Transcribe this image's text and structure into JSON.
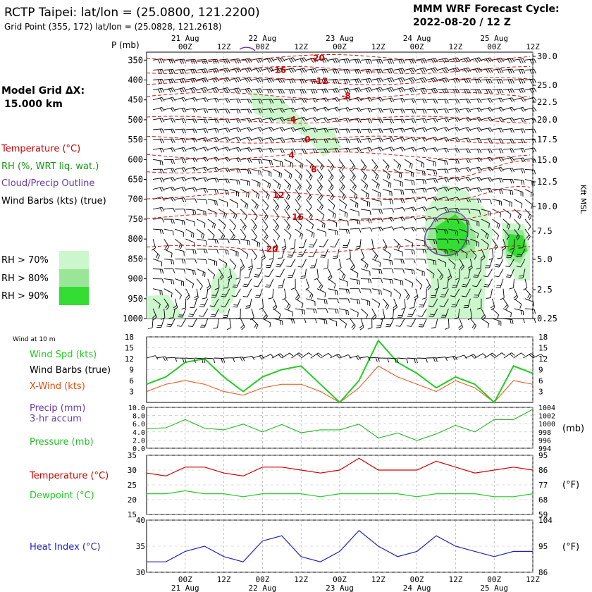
{
  "header": {
    "title": "RCTP Taipei:  lat/lon = (25.0800, 121.2200)",
    "grid_point": "Grid Point (355, 172) lat/lon = (25.0828, 121.2618)",
    "cycle_label": "MMM WRF Forecast Cycle:",
    "cycle_value": "2022-08-20 / 12  Z"
  },
  "sidebar": {
    "model_grid_label": "Model Grid ΔX:",
    "model_grid_value": "15.000 km",
    "legend_temperature": "Temperature (°C)",
    "legend_rh": "RH (%, WRT liq. wat.)",
    "legend_cloud": "Cloud/Precip Outline",
    "legend_barbs": "Wind Barbs (kts) (true)",
    "rh_70": "RH > 70%",
    "rh_80": "RH > 80%",
    "rh_90": "RH > 90%"
  },
  "colors": {
    "temperature": "#d00000",
    "rh_70": "#ccf7cc",
    "rh_80": "#99e699",
    "rh_90": "#33dd33",
    "cloud": "#6a3aa8",
    "wind_spd": "#22cc22",
    "x_wind": "#e05010",
    "pressure": "#22bb22",
    "dewpoint": "#22cc22",
    "heat_index": "#2222bb"
  },
  "chart_data": [
    {
      "type": "heatmap",
      "panel": "upper-air cross-section",
      "ylabel": "P (mb)",
      "y2label": "Kft MSL",
      "x_top_dates": [
        {
          "label": "21 Aug",
          "hour": 12
        },
        {
          "label": "22 Aug",
          "hour": 36
        },
        {
          "label": "23 Aug",
          "hour": 60
        },
        {
          "label": "24 Aug",
          "hour": 84
        },
        {
          "label": "25 Aug",
          "hour": 108
        }
      ],
      "x_hour_ticks": [
        {
          "label": "00Z",
          "hour": 12
        },
        {
          "label": "12Z",
          "hour": 24
        },
        {
          "label": "00Z",
          "hour": 36
        },
        {
          "label": "12Z",
          "hour": 48
        },
        {
          "label": "00Z",
          "hour": 60
        },
        {
          "label": "12Z",
          "hour": 72
        },
        {
          "label": "00Z",
          "hour": 84
        },
        {
          "label": "12Z",
          "hour": 96
        },
        {
          "label": "00Z",
          "hour": 108
        },
        {
          "label": "12Z",
          "hour": 120
        }
      ],
      "pressure_levels": [
        "350",
        "400",
        "450",
        "500",
        "550",
        "600",
        "650",
        "700",
        "750",
        "800",
        "850",
        "900",
        "950",
        "1000"
      ],
      "height_labels": [
        "30.0",
        "25.0",
        "22.5",
        "20.0",
        "17.5",
        "15.0",
        "12.5",
        "10.0",
        "7.5",
        "5.0",
        "2.5",
        "0.25"
      ],
      "temperature_labels": [
        {
          "text": "-20",
          "hour": 53,
          "p": 345
        },
        {
          "text": "-16",
          "hour": 41,
          "p": 375
        },
        {
          "text": "-12",
          "hour": 54,
          "p": 403
        },
        {
          "text": "-8",
          "hour": 62,
          "p": 440
        },
        {
          "text": "-4",
          "hour": 45,
          "p": 500
        },
        {
          "text": "0",
          "hour": 50,
          "p": 550
        },
        {
          "text": "4",
          "hour": 45,
          "p": 590
        },
        {
          "text": "8",
          "hour": 52,
          "p": 625
        },
        {
          "text": "12",
          "hour": 41,
          "p": 690
        },
        {
          "text": "16",
          "hour": 47,
          "p": 745
        },
        {
          "text": "20",
          "hour": 39,
          "p": 825
        }
      ]
    },
    {
      "type": "line",
      "panel": "surface wind",
      "caption": "Wind at 10 m",
      "y_ticks": [
        "3",
        "6",
        "9",
        "12",
        "15",
        "18"
      ],
      "ylim": [
        0,
        18
      ],
      "hours": [
        0,
        6,
        12,
        18,
        24,
        30,
        36,
        42,
        48,
        54,
        60,
        66,
        72,
        78,
        84,
        90,
        96,
        102,
        108,
        114,
        120
      ],
      "series": [
        {
          "name": "Wind Spd (kts)",
          "values": [
            5,
            7,
            11,
            12,
            7,
            3,
            7,
            9,
            10,
            5,
            0,
            6,
            17,
            11,
            8,
            4,
            7,
            5,
            0,
            10,
            8
          ]
        },
        {
          "name": "X-Wind (kts)",
          "values": [
            3,
            5,
            6,
            5,
            3,
            2,
            4,
            5,
            5,
            3,
            0,
            4,
            10,
            7,
            5,
            3,
            6,
            4,
            0,
            6,
            5
          ]
        }
      ],
      "barbs_label": "Wind Barbs (true)"
    },
    {
      "type": "line",
      "panel": "precip and pressure",
      "precip_label": "Precip (mm)",
      "precip_sublabel": "3-hr accum",
      "precip_ticks": [
        "0.0",
        "2.0",
        "4.0",
        "6.0",
        "8.0",
        "10.0"
      ],
      "pressure_ticks": [
        "994",
        "996",
        "998",
        "1000",
        "1002",
        "1004"
      ],
      "y2label": "(mb)",
      "ylim": [
        994,
        1004
      ],
      "hours": [
        0,
        6,
        12,
        18,
        24,
        30,
        36,
        42,
        48,
        54,
        60,
        66,
        72,
        78,
        84,
        90,
        96,
        102,
        108,
        114,
        120
      ],
      "series": [
        {
          "name": "Pressure (mb)",
          "values": [
            998.8,
            999,
            1001,
            998.9,
            998.5,
            999.9,
            998,
            999.8,
            997.8,
            998.5,
            998.5,
            999.9,
            996.5,
            997.7,
            995.9,
            997.5,
            999.6,
            998,
            1001,
            1001,
            1003.5
          ]
        }
      ]
    },
    {
      "type": "line",
      "panel": "temperature and dewpoint",
      "y_ticks": [
        "15",
        "20",
        "25",
        "30",
        "35"
      ],
      "y2_ticks": [
        "59",
        "68",
        "77",
        "86",
        "95"
      ],
      "y2label": "(°F)",
      "ylim": [
        15,
        35
      ],
      "hours": [
        0,
        6,
        12,
        18,
        24,
        30,
        36,
        42,
        48,
        54,
        60,
        66,
        72,
        78,
        84,
        90,
        96,
        102,
        108,
        114,
        120
      ],
      "series": [
        {
          "name": "Temperature (°C)",
          "values": [
            29,
            28,
            31,
            31,
            29,
            28,
            31,
            31,
            30,
            29,
            30,
            34,
            30,
            30,
            30,
            33,
            31,
            29,
            30,
            31,
            30
          ]
        },
        {
          "name": "Dewpoint (°C)",
          "values": [
            22,
            22,
            23,
            22,
            22,
            21,
            22,
            22,
            22,
            21,
            22,
            22,
            22,
            22,
            21,
            22,
            22,
            22,
            21,
            21,
            22
          ]
        }
      ]
    },
    {
      "type": "line",
      "panel": "heat index",
      "y_ticks": [
        "30",
        "35",
        "40"
      ],
      "y2_ticks": [
        "86",
        "95",
        "104"
      ],
      "y2label": "(°F)",
      "ylim": [
        30,
        40
      ],
      "hours": [
        0,
        6,
        12,
        18,
        24,
        30,
        36,
        42,
        48,
        54,
        60,
        66,
        72,
        78,
        84,
        90,
        96,
        102,
        108,
        114,
        120
      ],
      "series": [
        {
          "name": "Heat Index (°C)",
          "values": [
            32,
            32,
            34,
            35,
            33,
            32,
            36,
            37,
            33,
            32,
            34,
            38,
            35,
            33,
            34,
            37,
            35,
            34,
            33,
            34,
            34
          ]
        }
      ],
      "x_hour_ticks": [
        "00Z",
        "12Z",
        "00Z",
        "12Z",
        "00Z",
        "12Z",
        "00Z",
        "12Z",
        "00Z",
        "12Z"
      ],
      "x_dates": [
        "21 Aug",
        "22 Aug",
        "23 Aug",
        "24 Aug",
        "25 Aug"
      ]
    }
  ]
}
